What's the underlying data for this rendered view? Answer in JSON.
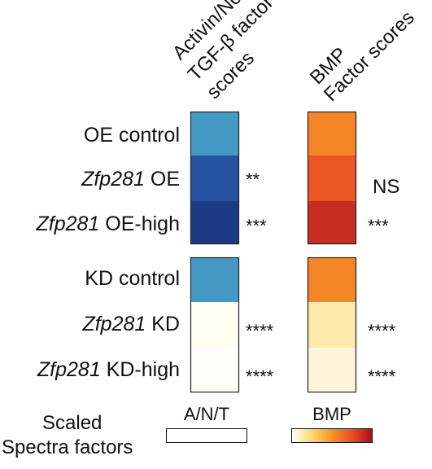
{
  "chart_data": {
    "type": "heatmap",
    "columns": [
      {
        "key": "anT",
        "label_lines": [
          "Activin/Nodal/",
          "TGF-β factor",
          "scores"
        ]
      },
      {
        "key": "bmp",
        "label_lines": [
          "BMP",
          "Factor scores"
        ]
      }
    ],
    "rows": [
      {
        "italic": "",
        "label": "OE control",
        "group": 1
      },
      {
        "italic": "Zfp281",
        "label": " OE",
        "group": 1
      },
      {
        "italic": "Zfp281",
        "label": " OE-high",
        "group": 1
      },
      {
        "italic": "",
        "label": "KD control",
        "group": 2
      },
      {
        "italic": "Zfp281",
        "label": " KD",
        "group": 2
      },
      {
        "italic": "Zfp281",
        "label": " KD-high",
        "group": 2
      }
    ],
    "values": {
      "anT": [
        0.55,
        0.82,
        0.93,
        0.55,
        0.05,
        0.02
      ],
      "bmp": [
        0.55,
        0.72,
        0.88,
        0.55,
        0.14,
        0.06
      ]
    },
    "significance": {
      "anT": [
        "",
        "**",
        "***",
        "",
        "****",
        "****"
      ],
      "bmp": [
        "",
        "NS",
        "***",
        "",
        "****",
        "****"
      ]
    },
    "value_range": [
      0,
      1
    ],
    "colorbars": [
      {
        "key": "anT",
        "title": "A/N/T",
        "stops": [
          "#ffffff",
          "#f7f3b5",
          "#4aa8c8",
          "#2b62b3",
          "#172c73"
        ]
      },
      {
        "key": "bmp",
        "title": "BMP",
        "stops": [
          "#ffffff",
          "#fbd86a",
          "#f79428",
          "#e94e25",
          "#a8101c"
        ]
      }
    ],
    "legend_label_lines": [
      "Scaled",
      "Spectra factors"
    ]
  }
}
